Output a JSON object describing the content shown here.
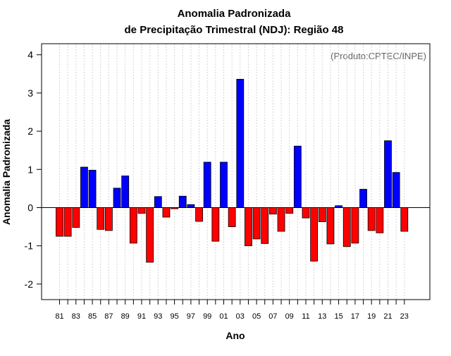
{
  "chart_data": {
    "type": "bar",
    "title": "Anomalia Padronizada",
    "subtitle": "de Precipitação Trimestral (NDJ): Região 48",
    "xlabel": "Ano",
    "ylabel": "Anomalia Padronizada",
    "annotation": "(Produto:CPTEC/INPE)",
    "ylim": [
      -2.4,
      4.3
    ],
    "yticks": [
      -2,
      -1,
      0,
      1,
      2,
      3,
      4
    ],
    "xtick_labels": [
      "81",
      "83",
      "85",
      "87",
      "89",
      "91",
      "93",
      "95",
      "97",
      "99",
      "01",
      "03",
      "05",
      "07",
      "09",
      "11",
      "13",
      "15",
      "17",
      "19",
      "21",
      "23"
    ],
    "categories": [
      "81",
      "82",
      "83",
      "84",
      "85",
      "86",
      "87",
      "88",
      "89",
      "90",
      "91",
      "92",
      "93",
      "94",
      "95",
      "96",
      "97",
      "98",
      "99",
      "00",
      "01",
      "02",
      "03",
      "04",
      "05",
      "06",
      "07",
      "08",
      "09",
      "10",
      "11",
      "12",
      "13",
      "14",
      "15",
      "16",
      "17",
      "18",
      "19",
      "20",
      "21",
      "22",
      "23"
    ],
    "values": [
      -0.75,
      -0.75,
      -0.52,
      1.06,
      0.98,
      -0.57,
      -0.6,
      0.51,
      0.83,
      -0.93,
      -0.15,
      -1.43,
      0.29,
      -0.25,
      -0.03,
      0.3,
      0.08,
      -0.36,
      1.19,
      -0.88,
      1.19,
      -0.5,
      3.36,
      -1.0,
      -0.82,
      -0.94,
      -0.17,
      -0.62,
      -0.15,
      1.61,
      -0.27,
      -1.4,
      -0.37,
      -0.95,
      0.05,
      -1.02,
      -0.93,
      0.48,
      -0.6,
      -0.66,
      1.75,
      0.92,
      -0.62
    ],
    "grid": true,
    "colors": {
      "positive": "#0000ff",
      "negative": "#ff0000",
      "border": "#000000",
      "grid": "#d3d3d3"
    }
  }
}
